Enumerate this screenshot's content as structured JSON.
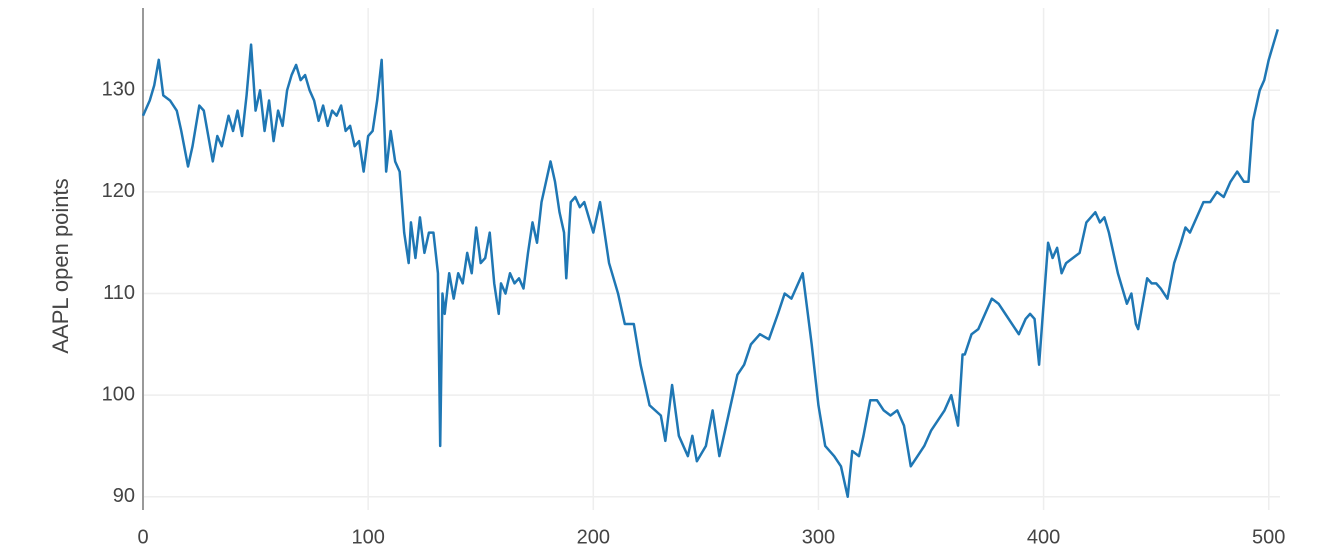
{
  "chart_data": {
    "type": "line",
    "y_label": "AAPL open points",
    "x": [
      0,
      3,
      5,
      7,
      9,
      12,
      15,
      17,
      20,
      22,
      25,
      27,
      29,
      31,
      33,
      35,
      38,
      40,
      42,
      44,
      46,
      48,
      50,
      52,
      54,
      56,
      58,
      60,
      62,
      64,
      66,
      68,
      70,
      72,
      74,
      76,
      78,
      80,
      82,
      84,
      86,
      88,
      90,
      92,
      94,
      96,
      98,
      100,
      102,
      104,
      106,
      108,
      110,
      112,
      114,
      116,
      118,
      119,
      121,
      123,
      125,
      127,
      129,
      131,
      132,
      133,
      134,
      136,
      138,
      140,
      142,
      144,
      146,
      148,
      150,
      152,
      154,
      156,
      158,
      159,
      161,
      163,
      165,
      167,
      169,
      171,
      173,
      175,
      177,
      179,
      181,
      183,
      185,
      187,
      188,
      190,
      192,
      194,
      196,
      198,
      200,
      203,
      207,
      211,
      214,
      218,
      221,
      225,
      230,
      232,
      235,
      238,
      242,
      244,
      246,
      250,
      253,
      256,
      261,
      264,
      267,
      270,
      274,
      278,
      282,
      285,
      288,
      293,
      295,
      297,
      300,
      303,
      307,
      310,
      313,
      315,
      318,
      320,
      323,
      326,
      329,
      332,
      335,
      338,
      341,
      344,
      347,
      350,
      353,
      356,
      359,
      362,
      364,
      365,
      368,
      371,
      374,
      377,
      380,
      383,
      386,
      389,
      392,
      394,
      396,
      398,
      400,
      402,
      404,
      406,
      408,
      410,
      413,
      416,
      419,
      421,
      423,
      425,
      427,
      429,
      431,
      433,
      435,
      437,
      439,
      441,
      442,
      444,
      446,
      448,
      450,
      452,
      455,
      458,
      461,
      463,
      465,
      468,
      471,
      474,
      477,
      480,
      483,
      486,
      489,
      491,
      493,
      494,
      496,
      498,
      500,
      502,
      504
    ],
    "series": [
      {
        "name": "AAPL open",
        "color": "#1f77b4",
        "values": [
          127.5,
          129,
          130.5,
          133,
          129.5,
          129,
          128,
          126,
          122.5,
          124.5,
          128.5,
          128,
          125.5,
          123,
          125.5,
          124.5,
          127.5,
          126,
          128,
          125.5,
          129.5,
          134.5,
          128,
          130,
          126,
          129,
          125,
          128,
          126.5,
          130,
          131.5,
          132.5,
          131,
          131.5,
          130,
          129,
          127,
          128.5,
          126.5,
          128,
          127.5,
          128.5,
          126,
          126.5,
          124.5,
          125,
          122,
          125.5,
          126,
          129,
          133,
          122,
          126,
          123,
          122,
          116,
          113,
          117,
          113.5,
          117.5,
          114,
          116,
          116,
          112,
          95,
          110,
          108,
          112,
          109.5,
          112,
          111,
          114,
          112,
          116.5,
          113,
          113.5,
          116,
          111,
          108,
          111,
          110,
          112,
          111,
          111.5,
          110.5,
          114,
          117,
          115,
          119,
          121,
          123,
          121,
          118,
          116,
          111.5,
          119,
          119.5,
          118.5,
          119,
          117.5,
          116,
          119,
          113,
          110,
          107,
          107,
          103,
          99,
          98,
          95.5,
          101,
          96,
          94,
          96,
          93.5,
          95,
          98.5,
          94,
          99,
          102,
          103,
          105,
          106,
          105.5,
          108,
          110,
          109.5,
          112,
          108.5,
          105,
          99,
          95,
          94,
          93,
          90,
          94.5,
          94,
          96,
          99.5,
          99.5,
          98.5,
          98,
          98.5,
          97,
          93,
          94,
          95,
          96.5,
          97.5,
          98.5,
          100,
          97,
          104,
          104,
          106,
          106.5,
          108,
          109.5,
          109,
          108,
          107,
          106,
          107.5,
          108,
          107.5,
          103,
          109,
          115,
          113.5,
          114.5,
          112,
          113,
          113.5,
          114,
          117,
          117.5,
          118,
          117,
          117.5,
          116,
          114,
          112,
          110.5,
          109,
          110,
          107,
          106.5,
          109,
          111.5,
          111,
          111,
          110.5,
          109.5,
          113,
          115,
          116.5,
          116,
          117.5,
          119,
          119,
          120,
          119.5,
          121,
          122,
          121,
          121,
          127,
          128,
          130,
          131,
          133,
          134.5,
          136
        ]
      }
    ],
    "xlim": [
      0,
      505
    ],
    "ylim": [
      88.7,
      138.1
    ],
    "xticks": [
      0,
      100,
      200,
      300,
      400,
      500
    ],
    "yticks": [
      90,
      100,
      110,
      120,
      130
    ],
    "grid": true
  }
}
